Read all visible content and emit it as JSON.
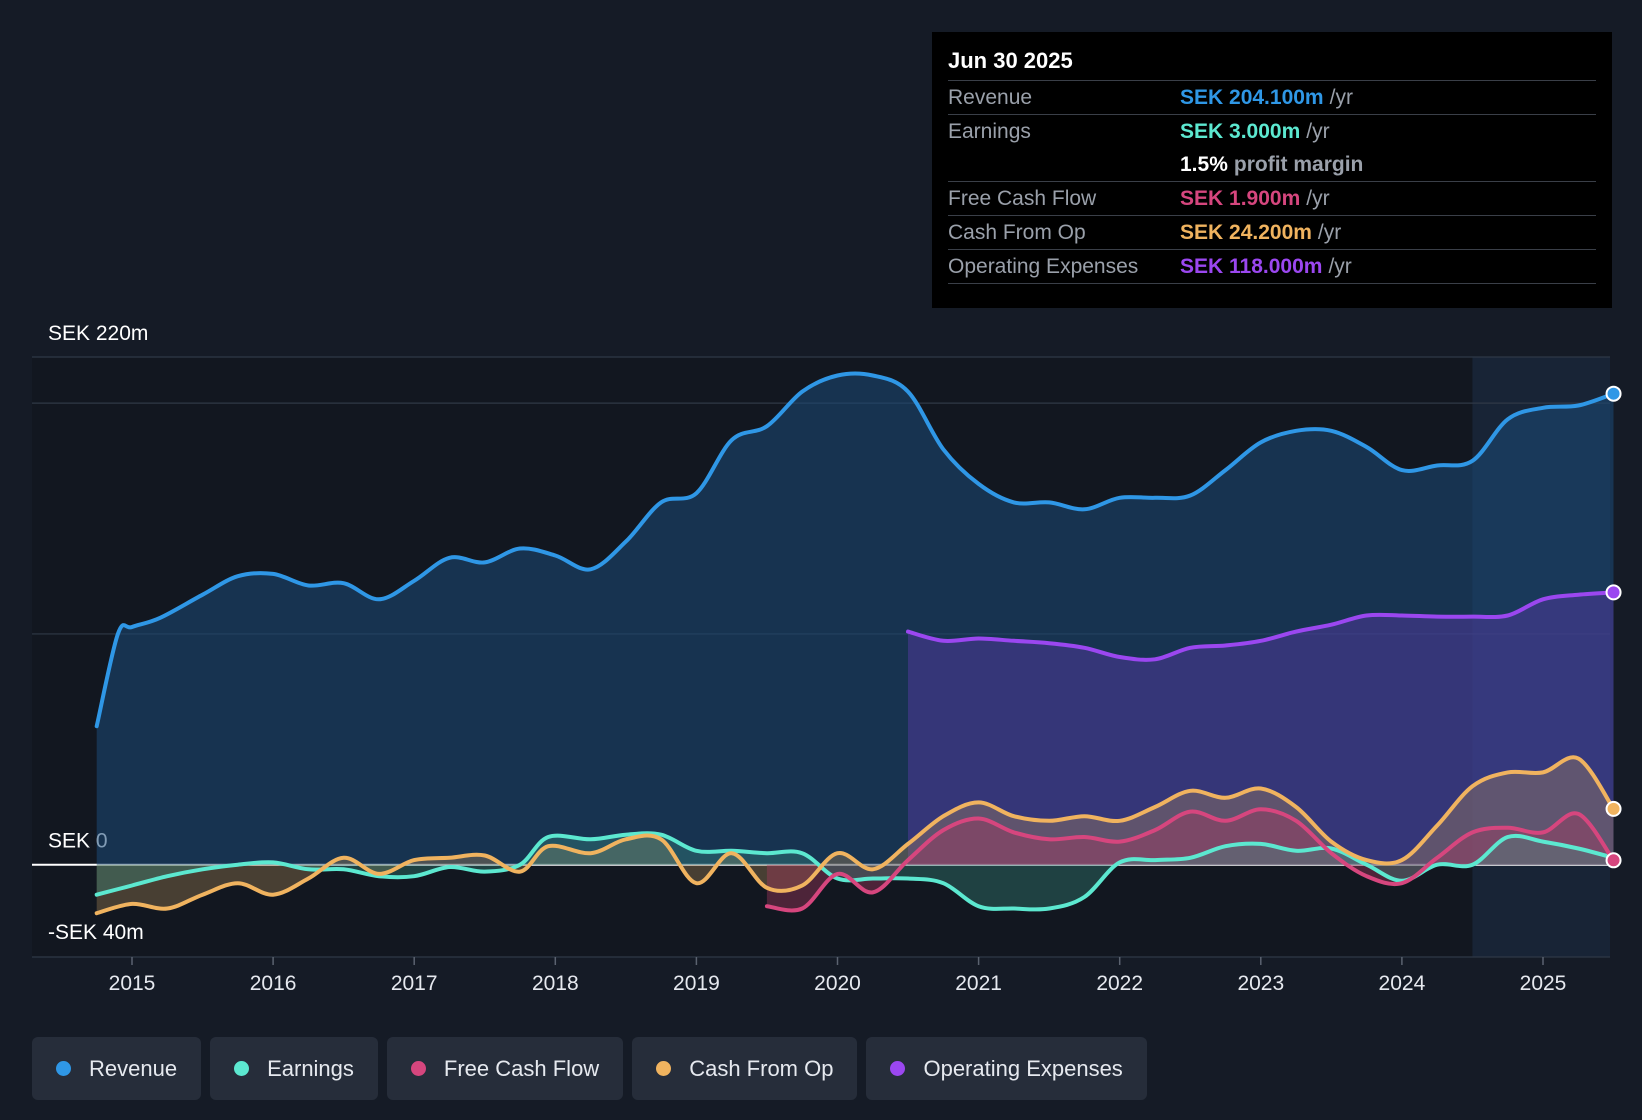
{
  "tooltip": {
    "date": "Jun 30 2025",
    "rows": [
      {
        "label": "Revenue",
        "value": "SEK 204.100m",
        "unit": "/yr",
        "color": "#2f97e6"
      },
      {
        "label": "Earnings",
        "value": "SEK 3.000m",
        "unit": "/yr",
        "color": "#5ce8d0"
      },
      {
        "label": "",
        "value": "1.5%",
        "unit": "profit margin",
        "color": "#ffffff"
      },
      {
        "label": "Free Cash Flow",
        "value": "SEK 1.900m",
        "unit": "/yr",
        "color": "#d6467e"
      },
      {
        "label": "Cash From Op",
        "value": "SEK 24.200m",
        "unit": "/yr",
        "color": "#f0b35f"
      },
      {
        "label": "Operating Expenses",
        "value": "SEK 118.000m",
        "unit": "/yr",
        "color": "#9b47f0"
      }
    ]
  },
  "legend": [
    {
      "label": "Revenue",
      "color": "#2f97e6"
    },
    {
      "label": "Earnings",
      "color": "#5ce8d0"
    },
    {
      "label": "Free Cash Flow",
      "color": "#d6467e"
    },
    {
      "label": "Cash From Op",
      "color": "#f0b35f"
    },
    {
      "label": "Operating Expenses",
      "color": "#9b47f0"
    }
  ],
  "chart_data": {
    "type": "area",
    "title": "",
    "xlabel": "",
    "ylabel": "",
    "y_axis_labels": {
      "top": "SEK 220m",
      "zero": "SEK 0",
      "bottom": "-SEK 40m"
    },
    "ylim": [
      -40,
      220
    ],
    "xlim": [
      2014.5,
      2025.5
    ],
    "x_ticks": [
      2015,
      2016,
      2017,
      2018,
      2019,
      2020,
      2021,
      2022,
      2023,
      2024,
      2025
    ],
    "forecast_start": 2024.5,
    "series": [
      {
        "name": "Revenue",
        "color": "#2f97e6",
        "points": [
          [
            2014.75,
            60
          ],
          [
            2014.9,
            100
          ],
          [
            2015.0,
            103
          ],
          [
            2015.2,
            107
          ],
          [
            2015.5,
            117
          ],
          [
            2015.75,
            125
          ],
          [
            2016.0,
            126
          ],
          [
            2016.25,
            121
          ],
          [
            2016.5,
            122
          ],
          [
            2016.75,
            115
          ],
          [
            2017.0,
            123
          ],
          [
            2017.25,
            133
          ],
          [
            2017.5,
            131
          ],
          [
            2017.75,
            137
          ],
          [
            2018.0,
            134
          ],
          [
            2018.25,
            128
          ],
          [
            2018.5,
            140
          ],
          [
            2018.75,
            157
          ],
          [
            2019.0,
            161
          ],
          [
            2019.25,
            184
          ],
          [
            2019.5,
            190
          ],
          [
            2019.75,
            205
          ],
          [
            2020.0,
            212
          ],
          [
            2020.25,
            212
          ],
          [
            2020.5,
            205
          ],
          [
            2020.75,
            180
          ],
          [
            2021.0,
            165
          ],
          [
            2021.25,
            157
          ],
          [
            2021.5,
            157
          ],
          [
            2021.75,
            154
          ],
          [
            2022.0,
            159
          ],
          [
            2022.25,
            159
          ],
          [
            2022.5,
            160
          ],
          [
            2022.75,
            171
          ],
          [
            2023.0,
            183
          ],
          [
            2023.25,
            188
          ],
          [
            2023.5,
            188
          ],
          [
            2023.75,
            181
          ],
          [
            2024.0,
            171
          ],
          [
            2024.25,
            173
          ],
          [
            2024.5,
            175
          ],
          [
            2024.75,
            193
          ],
          [
            2025.0,
            198
          ],
          [
            2025.25,
            199
          ],
          [
            2025.5,
            204.1
          ]
        ]
      },
      {
        "name": "Earnings",
        "color": "#5ce8d0",
        "points": [
          [
            2014.75,
            -13
          ],
          [
            2015.0,
            -9
          ],
          [
            2015.25,
            -5
          ],
          [
            2015.5,
            -2
          ],
          [
            2015.75,
            0
          ],
          [
            2016.0,
            1
          ],
          [
            2016.25,
            -2
          ],
          [
            2016.5,
            -2
          ],
          [
            2016.75,
            -5
          ],
          [
            2017.0,
            -5
          ],
          [
            2017.25,
            -1
          ],
          [
            2017.5,
            -3
          ],
          [
            2017.75,
            0
          ],
          [
            2017.95,
            12
          ],
          [
            2018.25,
            11
          ],
          [
            2018.5,
            13
          ],
          [
            2018.75,
            13
          ],
          [
            2019.0,
            6
          ],
          [
            2019.25,
            6
          ],
          [
            2019.5,
            5
          ],
          [
            2019.75,
            5
          ],
          [
            2020.0,
            -6
          ],
          [
            2020.25,
            -6
          ],
          [
            2020.5,
            -6
          ],
          [
            2020.75,
            -8
          ],
          [
            2021.0,
            -18
          ],
          [
            2021.25,
            -19
          ],
          [
            2021.5,
            -19
          ],
          [
            2021.75,
            -14
          ],
          [
            2022.0,
            1
          ],
          [
            2022.25,
            2
          ],
          [
            2022.5,
            3
          ],
          [
            2022.75,
            8
          ],
          [
            2023.0,
            9
          ],
          [
            2023.25,
            6
          ],
          [
            2023.5,
            7
          ],
          [
            2023.75,
            0
          ],
          [
            2024.0,
            -7
          ],
          [
            2024.25,
            0
          ],
          [
            2024.5,
            0
          ],
          [
            2024.75,
            12
          ],
          [
            2025.0,
            10
          ],
          [
            2025.25,
            7
          ],
          [
            2025.5,
            3
          ]
        ]
      },
      {
        "name": "Free Cash Flow",
        "color": "#d6467e",
        "points": [
          [
            2019.5,
            -18
          ],
          [
            2019.75,
            -19
          ],
          [
            2020.0,
            -4
          ],
          [
            2020.25,
            -12
          ],
          [
            2020.5,
            2
          ],
          [
            2020.75,
            15
          ],
          [
            2021.0,
            20
          ],
          [
            2021.25,
            14
          ],
          [
            2021.5,
            11
          ],
          [
            2021.75,
            12
          ],
          [
            2022.0,
            10
          ],
          [
            2022.25,
            15
          ],
          [
            2022.5,
            23
          ],
          [
            2022.75,
            19
          ],
          [
            2023.0,
            24
          ],
          [
            2023.25,
            19
          ],
          [
            2023.5,
            5
          ],
          [
            2023.75,
            -5
          ],
          [
            2024.0,
            -8
          ],
          [
            2024.25,
            3
          ],
          [
            2024.5,
            14
          ],
          [
            2024.75,
            16
          ],
          [
            2025.0,
            14
          ],
          [
            2025.25,
            22
          ],
          [
            2025.5,
            1.9
          ]
        ]
      },
      {
        "name": "Cash From Op",
        "color": "#f0b35f",
        "points": [
          [
            2014.75,
            -21
          ],
          [
            2015.0,
            -17
          ],
          [
            2015.25,
            -19
          ],
          [
            2015.5,
            -13
          ],
          [
            2015.75,
            -8
          ],
          [
            2016.0,
            -13
          ],
          [
            2016.25,
            -6
          ],
          [
            2016.5,
            3
          ],
          [
            2016.75,
            -4
          ],
          [
            2017.0,
            2
          ],
          [
            2017.25,
            3
          ],
          [
            2017.5,
            4
          ],
          [
            2017.75,
            -3
          ],
          [
            2017.95,
            8
          ],
          [
            2018.25,
            5
          ],
          [
            2018.5,
            11
          ],
          [
            2018.75,
            11
          ],
          [
            2019.0,
            -8
          ],
          [
            2019.25,
            5
          ],
          [
            2019.5,
            -10
          ],
          [
            2019.75,
            -9
          ],
          [
            2020.0,
            5
          ],
          [
            2020.25,
            -2
          ],
          [
            2020.5,
            9
          ],
          [
            2020.75,
            21
          ],
          [
            2021.0,
            27
          ],
          [
            2021.25,
            21
          ],
          [
            2021.5,
            19
          ],
          [
            2021.75,
            21
          ],
          [
            2022.0,
            19
          ],
          [
            2022.25,
            25
          ],
          [
            2022.5,
            32
          ],
          [
            2022.75,
            29
          ],
          [
            2023.0,
            33
          ],
          [
            2023.25,
            25
          ],
          [
            2023.5,
            10
          ],
          [
            2023.75,
            2
          ],
          [
            2024.0,
            2
          ],
          [
            2024.25,
            17
          ],
          [
            2024.5,
            34
          ],
          [
            2024.75,
            40
          ],
          [
            2025.0,
            40
          ],
          [
            2025.25,
            46
          ],
          [
            2025.5,
            24.2
          ]
        ]
      },
      {
        "name": "Operating Expenses",
        "color": "#9b47f0",
        "points": [
          [
            2020.5,
            101
          ],
          [
            2020.75,
            97
          ],
          [
            2021.0,
            98
          ],
          [
            2021.25,
            97
          ],
          [
            2021.5,
            96
          ],
          [
            2021.75,
            94
          ],
          [
            2022.0,
            90
          ],
          [
            2022.25,
            89
          ],
          [
            2022.5,
            94
          ],
          [
            2022.75,
            95
          ],
          [
            2023.0,
            97
          ],
          [
            2023.25,
            101
          ],
          [
            2023.5,
            104
          ],
          [
            2023.75,
            108
          ],
          [
            2024.0,
            108
          ],
          [
            2024.25,
            107.5
          ],
          [
            2024.5,
            107.5
          ],
          [
            2024.75,
            108
          ],
          [
            2025.0,
            115
          ],
          [
            2025.25,
            117
          ],
          [
            2025.5,
            118
          ]
        ]
      }
    ]
  }
}
